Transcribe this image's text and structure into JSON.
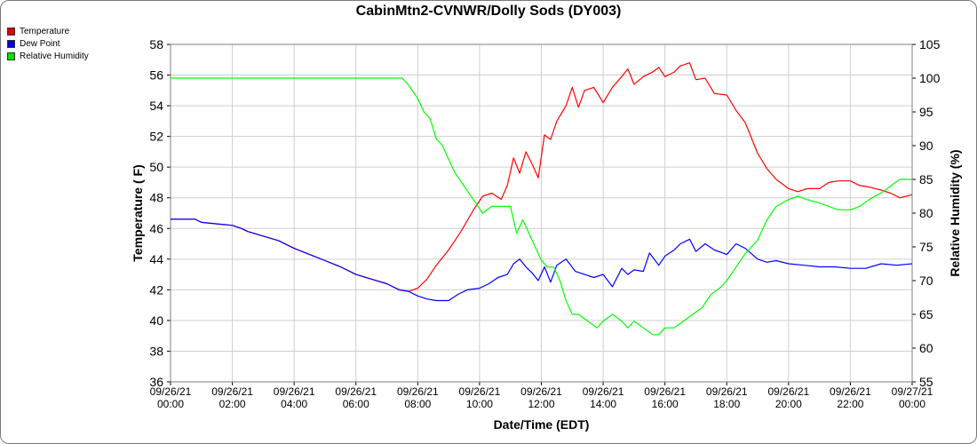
{
  "chart_data": {
    "type": "line",
    "title": "CabinMtn2-CVNWR/Dolly Sods (DY003)",
    "xlabel": "Date/Time (EDT)",
    "ylabel_left": "Temperature ( F)",
    "ylabel_right": "Relative Humidity (%)",
    "xlim": [
      0,
      24
    ],
    "ylim_left": [
      36,
      58
    ],
    "ylim_right": [
      55,
      105
    ],
    "y_ticks_left": [
      "36",
      "38",
      "40",
      "42",
      "44",
      "46",
      "48",
      "50",
      "52",
      "54",
      "56",
      "58"
    ],
    "y_ticks_right": [
      "55",
      "60",
      "65",
      "70",
      "75",
      "80",
      "85",
      "90",
      "95",
      "100",
      "105"
    ],
    "x_ticks": [
      {
        "date": "09/26/21",
        "time": "00:00"
      },
      {
        "date": "09/26/21",
        "time": "02:00"
      },
      {
        "date": "09/26/21",
        "time": "04:00"
      },
      {
        "date": "09/26/21",
        "time": "06:00"
      },
      {
        "date": "09/26/21",
        "time": "08:00"
      },
      {
        "date": "09/26/21",
        "time": "10:00"
      },
      {
        "date": "09/26/21",
        "time": "12:00"
      },
      {
        "date": "09/26/21",
        "time": "14:00"
      },
      {
        "date": "09/26/21",
        "time": "16:00"
      },
      {
        "date": "09/26/21",
        "time": "18:00"
      },
      {
        "date": "09/26/21",
        "time": "20:00"
      },
      {
        "date": "09/26/21",
        "time": "22:00"
      },
      {
        "date": "09/27/21",
        "time": "00:00"
      }
    ],
    "grid": true,
    "legend_position": "top-left",
    "series": [
      {
        "name": "Temperature",
        "axis": "left",
        "color": "#ff0000",
        "points": [
          [
            0,
            46.6
          ],
          [
            0.8,
            46.6
          ],
          [
            1,
            46.4
          ],
          [
            1.5,
            46.3
          ],
          [
            2,
            46.2
          ],
          [
            2.3,
            46.0
          ],
          [
            2.5,
            45.8
          ],
          [
            3,
            45.5
          ],
          [
            3.5,
            45.2
          ],
          [
            4,
            44.7
          ],
          [
            4.5,
            44.3
          ],
          [
            5,
            43.9
          ],
          [
            5.5,
            43.5
          ],
          [
            6,
            43.0
          ],
          [
            6.5,
            42.7
          ],
          [
            7,
            42.4
          ],
          [
            7.4,
            42.0
          ],
          [
            7.7,
            41.9
          ],
          [
            8,
            42.1
          ],
          [
            8.3,
            42.7
          ],
          [
            8.6,
            43.6
          ],
          [
            9,
            44.6
          ],
          [
            9.4,
            45.8
          ],
          [
            9.8,
            47.2
          ],
          [
            10.1,
            48.1
          ],
          [
            10.4,
            48.3
          ],
          [
            10.7,
            47.9
          ],
          [
            10.9,
            48.8
          ],
          [
            11.1,
            50.6
          ],
          [
            11.3,
            49.6
          ],
          [
            11.5,
            51.0
          ],
          [
            11.7,
            50.2
          ],
          [
            11.9,
            49.3
          ],
          [
            12.1,
            52.1
          ],
          [
            12.3,
            51.8
          ],
          [
            12.5,
            53.0
          ],
          [
            12.8,
            54.0
          ],
          [
            13,
            55.2
          ],
          [
            13.2,
            53.9
          ],
          [
            13.4,
            55.0
          ],
          [
            13.7,
            55.2
          ],
          [
            14,
            54.2
          ],
          [
            14.3,
            55.2
          ],
          [
            14.6,
            55.9
          ],
          [
            14.8,
            56.4
          ],
          [
            15,
            55.4
          ],
          [
            15.3,
            55.9
          ],
          [
            15.6,
            56.2
          ],
          [
            15.8,
            56.5
          ],
          [
            16,
            55.9
          ],
          [
            16.3,
            56.2
          ],
          [
            16.5,
            56.6
          ],
          [
            16.8,
            56.8
          ],
          [
            17,
            55.7
          ],
          [
            17.3,
            55.8
          ],
          [
            17.6,
            54.8
          ],
          [
            18,
            54.7
          ],
          [
            18.3,
            53.7
          ],
          [
            18.6,
            52.9
          ],
          [
            19,
            50.9
          ],
          [
            19.3,
            49.9
          ],
          [
            19.6,
            49.2
          ],
          [
            20,
            48.6
          ],
          [
            20.3,
            48.4
          ],
          [
            20.6,
            48.6
          ],
          [
            21,
            48.6
          ],
          [
            21.3,
            49.0
          ],
          [
            21.6,
            49.1
          ],
          [
            22,
            49.1
          ],
          [
            22.3,
            48.8
          ],
          [
            22.6,
            48.7
          ],
          [
            23,
            48.5
          ],
          [
            23.3,
            48.3
          ],
          [
            23.6,
            48.0
          ],
          [
            24,
            48.2
          ]
        ]
      },
      {
        "name": "Dew Point",
        "axis": "left",
        "color": "#0000ff",
        "points": [
          [
            0,
            46.6
          ],
          [
            0.8,
            46.6
          ],
          [
            1,
            46.4
          ],
          [
            1.5,
            46.3
          ],
          [
            2,
            46.2
          ],
          [
            2.3,
            46.0
          ],
          [
            2.5,
            45.8
          ],
          [
            3,
            45.5
          ],
          [
            3.5,
            45.2
          ],
          [
            4,
            44.7
          ],
          [
            4.5,
            44.3
          ],
          [
            5,
            43.9
          ],
          [
            5.5,
            43.5
          ],
          [
            6,
            43.0
          ],
          [
            6.5,
            42.7
          ],
          [
            7,
            42.4
          ],
          [
            7.4,
            42.0
          ],
          [
            7.7,
            41.9
          ],
          [
            8,
            41.6
          ],
          [
            8.3,
            41.4
          ],
          [
            8.6,
            41.3
          ],
          [
            9,
            41.3
          ],
          [
            9.3,
            41.7
          ],
          [
            9.6,
            42.0
          ],
          [
            10,
            42.1
          ],
          [
            10.3,
            42.4
          ],
          [
            10.6,
            42.8
          ],
          [
            10.9,
            43.0
          ],
          [
            11.1,
            43.7
          ],
          [
            11.3,
            44.0
          ],
          [
            11.5,
            43.5
          ],
          [
            11.7,
            43.1
          ],
          [
            11.9,
            42.6
          ],
          [
            12.1,
            43.5
          ],
          [
            12.3,
            42.5
          ],
          [
            12.5,
            43.6
          ],
          [
            12.8,
            44.0
          ],
          [
            13.1,
            43.2
          ],
          [
            13.4,
            43.0
          ],
          [
            13.7,
            42.8
          ],
          [
            14,
            43.0
          ],
          [
            14.3,
            42.2
          ],
          [
            14.6,
            43.4
          ],
          [
            14.8,
            43.0
          ],
          [
            15,
            43.3
          ],
          [
            15.3,
            43.2
          ],
          [
            15.5,
            44.4
          ],
          [
            15.8,
            43.6
          ],
          [
            16,
            44.2
          ],
          [
            16.3,
            44.6
          ],
          [
            16.5,
            45.0
          ],
          [
            16.8,
            45.3
          ],
          [
            17,
            44.5
          ],
          [
            17.3,
            45.0
          ],
          [
            17.6,
            44.6
          ],
          [
            18,
            44.3
          ],
          [
            18.3,
            45.0
          ],
          [
            18.6,
            44.7
          ],
          [
            19,
            44.0
          ],
          [
            19.3,
            43.8
          ],
          [
            19.6,
            43.9
          ],
          [
            20,
            43.7
          ],
          [
            20.5,
            43.6
          ],
          [
            21,
            43.5
          ],
          [
            21.5,
            43.5
          ],
          [
            22,
            43.4
          ],
          [
            22.5,
            43.4
          ],
          [
            23,
            43.7
          ],
          [
            23.5,
            43.6
          ],
          [
            24,
            43.7
          ]
        ]
      },
      {
        "name": "Relative Humidity",
        "axis": "right",
        "color": "#00ff00",
        "points": [
          [
            0,
            100
          ],
          [
            7.5,
            100
          ],
          [
            7.7,
            99
          ],
          [
            8,
            97
          ],
          [
            8.2,
            95
          ],
          [
            8.4,
            94
          ],
          [
            8.6,
            91
          ],
          [
            8.8,
            90
          ],
          [
            9,
            88
          ],
          [
            9.2,
            86
          ],
          [
            9.5,
            84
          ],
          [
            9.8,
            82
          ],
          [
            10.1,
            80
          ],
          [
            10.4,
            81
          ],
          [
            10.7,
            81
          ],
          [
            11,
            81
          ],
          [
            11.2,
            77
          ],
          [
            11.4,
            79
          ],
          [
            11.6,
            77
          ],
          [
            11.8,
            75
          ],
          [
            12,
            73
          ],
          [
            12.2,
            72
          ],
          [
            12.4,
            72
          ],
          [
            12.6,
            70
          ],
          [
            12.8,
            67
          ],
          [
            13,
            65
          ],
          [
            13.2,
            65
          ],
          [
            13.5,
            64
          ],
          [
            13.8,
            63
          ],
          [
            14,
            64
          ],
          [
            14.3,
            65
          ],
          [
            14.6,
            64
          ],
          [
            14.8,
            63
          ],
          [
            15,
            64
          ],
          [
            15.3,
            63
          ],
          [
            15.6,
            62
          ],
          [
            15.8,
            62
          ],
          [
            16,
            63
          ],
          [
            16.3,
            63
          ],
          [
            16.6,
            64
          ],
          [
            16.9,
            65
          ],
          [
            17.2,
            66
          ],
          [
            17.5,
            68
          ],
          [
            17.8,
            69
          ],
          [
            18,
            70
          ],
          [
            18.3,
            72
          ],
          [
            18.6,
            74
          ],
          [
            19,
            76
          ],
          [
            19.3,
            79
          ],
          [
            19.6,
            81
          ],
          [
            20,
            82
          ],
          [
            20.3,
            82.5
          ],
          [
            20.6,
            82
          ],
          [
            21,
            81.5
          ],
          [
            21.3,
            81
          ],
          [
            21.6,
            80.5
          ],
          [
            22,
            80.5
          ],
          [
            22.3,
            81
          ],
          [
            22.6,
            82
          ],
          [
            23,
            83
          ],
          [
            23.3,
            84
          ],
          [
            23.6,
            85
          ],
          [
            24,
            85
          ]
        ]
      }
    ]
  }
}
